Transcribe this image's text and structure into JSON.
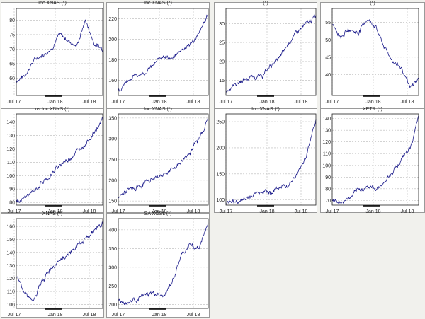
{
  "chart_data": [
    {
      "type": "line",
      "title": "Inc XNAS (*)",
      "x_ticks": [
        "Jul 17",
        "Jan 18",
        "Jul 18"
      ],
      "y_ticks": [
        60,
        65,
        70,
        75,
        80
      ],
      "ylim": [
        54,
        84
      ],
      "x": [
        0,
        0.1,
        0.2,
        0.3,
        0.4,
        0.5,
        0.6,
        0.7,
        0.8,
        0.9,
        1.0
      ],
      "series": [
        {
          "values": [
            59,
            61,
            66,
            68,
            70,
            75,
            73,
            71,
            80,
            72,
            70
          ]
        }
      ]
    },
    {
      "type": "line",
      "title": "Inc XNAS (*)",
      "x_ticks": [
        "Jul 17",
        "Jan 18",
        "Jul 18"
      ],
      "y_ticks": [
        160,
        180,
        200,
        220
      ],
      "ylim": [
        145,
        230
      ],
      "x": [
        0,
        0.1,
        0.2,
        0.3,
        0.4,
        0.5,
        0.6,
        0.7,
        0.8,
        0.9,
        1.0
      ],
      "series": [
        {
          "values": [
            150,
            160,
            165,
            168,
            175,
            185,
            180,
            190,
            195,
            205,
            225
          ]
        }
      ]
    },
    {
      "type": "line",
      "title": "(*)",
      "x_ticks": [
        "Jul 17",
        "Jan 18",
        "Jul 18"
      ],
      "y_ticks": [
        15,
        20,
        25,
        30
      ],
      "ylim": [
        11,
        34
      ],
      "x": [
        0,
        0.1,
        0.2,
        0.3,
        0.4,
        0.5,
        0.6,
        0.7,
        0.8,
        0.9,
        1.0
      ],
      "series": [
        {
          "values": [
            12,
            14,
            15,
            16,
            16,
            19,
            21,
            25,
            28,
            30,
            32
          ]
        }
      ]
    },
    {
      "type": "line",
      "title": "(*)",
      "x_ticks": [
        "Jul 17",
        "Jan 18",
        "Jul 18"
      ],
      "y_ticks": [
        40,
        45,
        50,
        55
      ],
      "ylim": [
        34,
        59
      ],
      "x": [
        0,
        0.1,
        0.2,
        0.3,
        0.4,
        0.5,
        0.6,
        0.7,
        0.8,
        0.9,
        1.0
      ],
      "series": [
        {
          "values": [
            55,
            51,
            53,
            52,
            56,
            54,
            48,
            44,
            42,
            36,
            39
          ]
        }
      ]
    },
    {
      "type": "line",
      "title": "ns Inc XNYS (*)",
      "x_ticks": [
        "Jul 17",
        "Jan 18",
        "Jul 18"
      ],
      "y_ticks": [
        80,
        90,
        100,
        110,
        120,
        130,
        140
      ],
      "ylim": [
        78,
        146
      ],
      "x": [
        0,
        0.1,
        0.2,
        0.3,
        0.4,
        0.5,
        0.6,
        0.7,
        0.8,
        0.9,
        1.0
      ],
      "series": [
        {
          "values": [
            80,
            84,
            88,
            95,
            100,
            108,
            112,
            118,
            124,
            132,
            142
          ]
        }
      ]
    },
    {
      "type": "line",
      "title": "Inc XNAS (*)",
      "x_ticks": [
        "Jul 17",
        "Jan 18",
        "Jul 18"
      ],
      "y_ticks": [
        150,
        200,
        250,
        300,
        350
      ],
      "ylim": [
        140,
        360
      ],
      "x": [
        0,
        0.1,
        0.2,
        0.3,
        0.4,
        0.5,
        0.6,
        0.7,
        0.8,
        0.9,
        1.0
      ],
      "series": [
        {
          "values": [
            160,
            175,
            180,
            195,
            205,
            215,
            225,
            245,
            270,
            300,
            350
          ]
        }
      ]
    },
    {
      "type": "line",
      "title": "Inc XNAS (*)",
      "x_ticks": [
        "Jul 17",
        "Jan 18",
        "Jul 18"
      ],
      "y_ticks": [
        100,
        150,
        200,
        250
      ],
      "ylim": [
        90,
        265
      ],
      "x": [
        0,
        0.1,
        0.2,
        0.3,
        0.4,
        0.5,
        0.6,
        0.7,
        0.8,
        0.9,
        1.0
      ],
      "series": [
        {
          "values": [
            95,
            96,
            100,
            110,
            118,
            115,
            125,
            130,
            150,
            190,
            255
          ]
        }
      ]
    },
    {
      "type": "line",
      "title": "XETR (*)",
      "x_ticks": [
        "Jul 17",
        "Jan 18",
        "Jul 18"
      ],
      "y_ticks": [
        70,
        80,
        90,
        100,
        110,
        120,
        130,
        140
      ],
      "ylim": [
        66,
        144
      ],
      "x": [
        0,
        0.1,
        0.2,
        0.3,
        0.4,
        0.5,
        0.6,
        0.7,
        0.8,
        0.9,
        1.0
      ],
      "series": [
        {
          "values": [
            70,
            68,
            72,
            78,
            82,
            80,
            85,
            95,
            105,
            115,
            140
          ]
        }
      ]
    },
    {
      "type": "line",
      "title": "XNAS (*)",
      "x_ticks": [
        "Jul 17",
        "Jan 18",
        "Jul 18"
      ],
      "y_ticks": [
        100,
        110,
        120,
        130,
        140,
        150,
        160
      ],
      "ylim": [
        97,
        166
      ],
      "x": [
        0,
        0.1,
        0.2,
        0.3,
        0.4,
        0.5,
        0.6,
        0.7,
        0.8,
        0.9,
        1.0
      ],
      "series": [
        {
          "values": [
            122,
            110,
            102,
            118,
            128,
            135,
            138,
            145,
            150,
            157,
            163
          ]
        }
      ]
    },
    {
      "type": "line",
      "title": "SA XOSL (*)",
      "x_ticks": [
        "Jul 17",
        "Jan 18",
        "Jul 18"
      ],
      "y_ticks": [
        200,
        250,
        300,
        350,
        400
      ],
      "ylim": [
        190,
        430
      ],
      "x": [
        0,
        0.1,
        0.2,
        0.3,
        0.4,
        0.5,
        0.6,
        0.7,
        0.8,
        0.9,
        1.0
      ],
      "series": [
        {
          "values": [
            210,
            205,
            215,
            225,
            230,
            220,
            260,
            330,
            360,
            350,
            420
          ]
        }
      ]
    }
  ]
}
